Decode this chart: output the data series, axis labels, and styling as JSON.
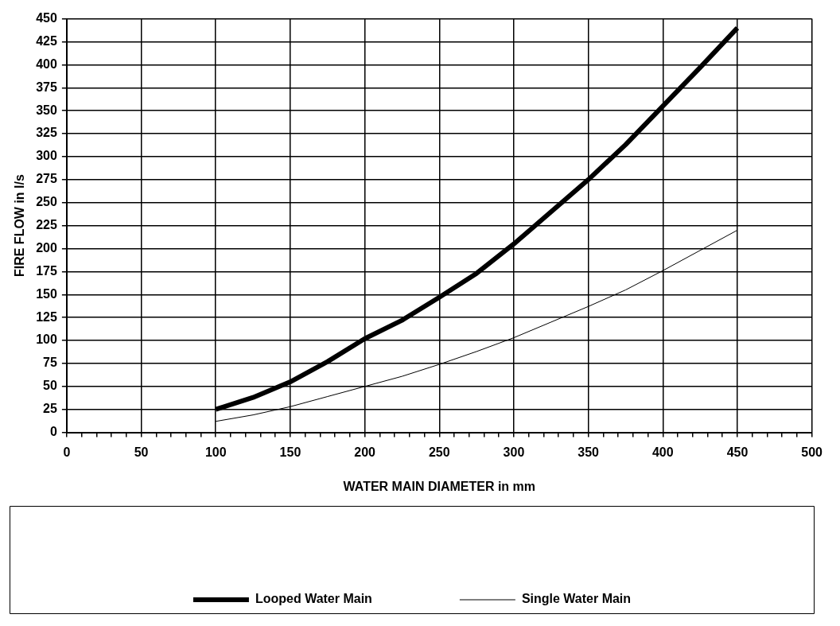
{
  "chart_data": {
    "type": "line",
    "xlabel": "WATER MAIN DIAMETER in mm",
    "ylabel": "FIRE FLOW in l/s",
    "xlim": [
      0,
      500
    ],
    "xticks": [
      0,
      {
        "value": 10,
        "label": null
      },
      {
        "value": 20,
        "label": null
      },
      {
        "value": 30,
        "label": null
      },
      {
        "value": 40,
        "label": null
      },
      50,
      {
        "value": 60,
        "label": null
      },
      {
        "value": 70,
        "label": null
      },
      {
        "value": 80,
        "label": null
      },
      {
        "value": 90,
        "label": null
      },
      100,
      {
        "value": 110,
        "label": null
      },
      {
        "value": 120,
        "label": null
      },
      {
        "value": 130,
        "label": null
      },
      {
        "value": 140,
        "label": null
      },
      150,
      {
        "value": 160,
        "label": null
      },
      {
        "value": 170,
        "label": null
      },
      {
        "value": 180,
        "label": null
      },
      {
        "value": 190,
        "label": null
      },
      200,
      {
        "value": 210,
        "label": null
      },
      {
        "value": 220,
        "label": null
      },
      {
        "value": 230,
        "label": null
      },
      {
        "value": 240,
        "label": null
      },
      250,
      {
        "value": 260,
        "label": null
      },
      {
        "value": 270,
        "label": null
      },
      {
        "value": 280,
        "label": null
      },
      {
        "value": 290,
        "label": null
      },
      300,
      {
        "value": 310,
        "label": null
      },
      {
        "value": 320,
        "label": null
      },
      {
        "value": 330,
        "label": null
      },
      {
        "value": 340,
        "label": null
      },
      350,
      {
        "value": 360,
        "label": null
      },
      {
        "value": 370,
        "label": null
      },
      {
        "value": 380,
        "label": null
      },
      {
        "value": 390,
        "label": null
      },
      400,
      {
        "value": 410,
        "label": null
      },
      {
        "value": 420,
        "label": null
      },
      {
        "value": 430,
        "label": null
      },
      {
        "value": 440,
        "label": null
      },
      450,
      {
        "value": 460,
        "label": null
      },
      {
        "value": 470,
        "label": null
      },
      {
        "value": 480,
        "label": null
      },
      {
        "value": 490,
        "label": null
      },
      500
    ],
    "ylim": [
      0,
      450
    ],
    "yticks": [
      0,
      25,
      50,
      75,
      100,
      125,
      150,
      175,
      200,
      225,
      250,
      275,
      300,
      325,
      350,
      375,
      400,
      425,
      450
    ],
    "grid": true,
    "legend": "bottom",
    "marker": "none",
    "x": [
      100,
      125,
      150,
      175,
      200,
      225,
      250,
      275,
      300,
      325,
      350,
      375,
      400,
      425,
      450
    ],
    "series": [
      {
        "name": "Looped Water Main",
        "color": "#000000",
        "values": [
          25,
          38,
          55,
          77,
          102,
          122,
          147,
          173,
          205,
          240,
          275,
          313,
          355,
          397,
          440
        ]
      },
      {
        "name": "Single Water Main",
        "color": "#000000",
        "values": [
          12,
          19,
          28,
          39,
          50,
          61,
          74,
          88,
          103,
          120,
          137,
          155,
          176,
          198,
          220
        ]
      }
    ]
  }
}
